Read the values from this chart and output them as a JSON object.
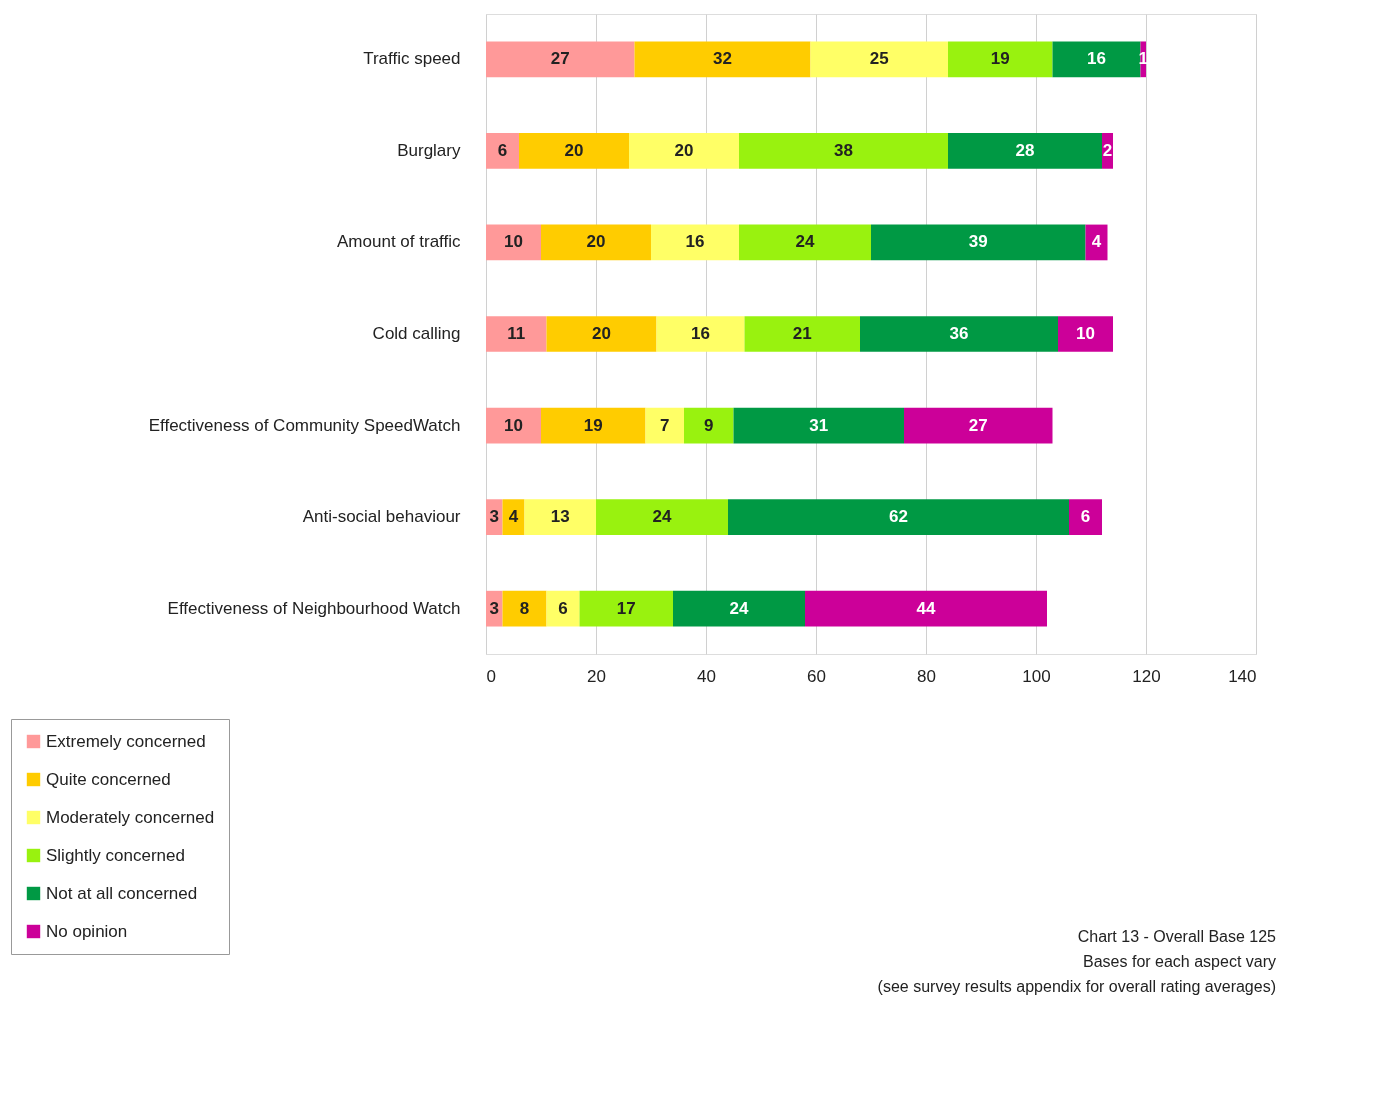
{
  "chart_data": {
    "type": "bar",
    "orientation": "horizontal",
    "stacked": true,
    "data_labels": true,
    "grid": "x",
    "legend": "bottom left",
    "categories": [
      "Traffic speed",
      "Burglary",
      "Amount of traffic",
      "Cold calling",
      "Effectiveness of Community SpeedWatch",
      "Anti-social behaviour",
      "Effectiveness of Neighbourhood Watch"
    ],
    "series": [
      {
        "name": "Extremely concerned",
        "color": "#ff9999",
        "values": [
          27,
          6,
          10,
          11,
          10,
          3,
          3
        ]
      },
      {
        "name": "Quite concerned",
        "color": "#ffcc00",
        "values": [
          32,
          20,
          20,
          20,
          19,
          4,
          8
        ]
      },
      {
        "name": "Moderately concerned",
        "color": "#ffff66",
        "values": [
          25,
          20,
          16,
          16,
          7,
          13,
          6
        ]
      },
      {
        "name": "Slightly concerned",
        "color": "#99f20f",
        "values": [
          19,
          38,
          24,
          21,
          9,
          24,
          17
        ]
      },
      {
        "name": "Not at all concerned",
        "color": "#009944",
        "values": [
          16,
          28,
          39,
          36,
          31,
          62,
          24
        ]
      },
      {
        "name": "No opinion",
        "color": "#cc0099",
        "values": [
          1,
          2,
          4,
          10,
          27,
          6,
          44
        ]
      }
    ],
    "xlim": [
      0,
      140
    ],
    "xticks": [
      0,
      20,
      40,
      60,
      80,
      100,
      120,
      140
    ],
    "annotations": [
      "Chart 13 - Overall Base 125",
      "Bases for each aspect vary",
      "(see survey results appendix for overall rating averages)"
    ]
  }
}
